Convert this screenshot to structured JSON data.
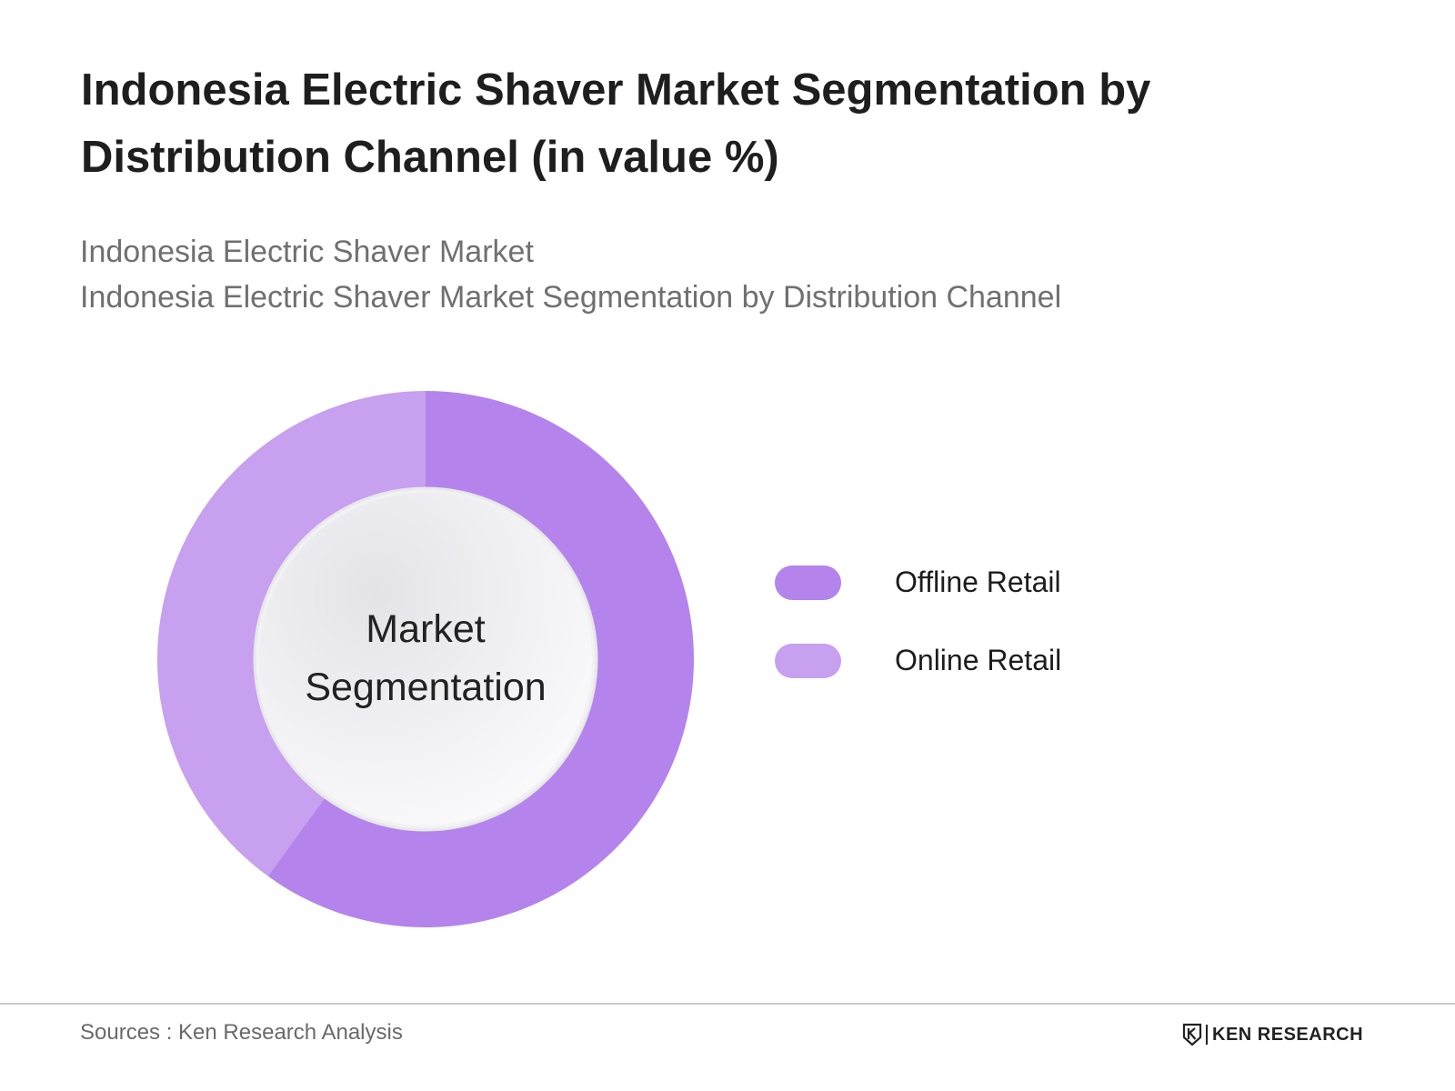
{
  "title": "Indonesia Electric Shaver Market Segmentation by Distribution Channel (in value %)",
  "subtitle_lines": [
    "Indonesia Electric Shaver Market",
    "Indonesia Electric Shaver Market Segmentation by Distribution Channel"
  ],
  "center_label": {
    "line1": "Market",
    "line2": "Segmentation"
  },
  "chart_data": {
    "type": "pie",
    "style": "donut",
    "title": "Indonesia Electric Shaver Market Segmentation by Distribution Channel (in value %)",
    "categories": [
      "Offline Retail",
      "Online Retail"
    ],
    "values": [
      60,
      40
    ],
    "colors": [
      "#b484ec",
      "#c7a0ef"
    ],
    "legend_position": "right",
    "data_labels": false,
    "grid": false
  },
  "legend": [
    {
      "label": "Offline Retail",
      "color": "#b484ec"
    },
    {
      "label": "Online Retail",
      "color": "#c7a0ef"
    }
  ],
  "footer": {
    "source": "Sources : Ken Research Analysis",
    "logo_text": "KEN RESEARCH"
  },
  "colors": {
    "offline": "#b484ec",
    "online": "#c7a0ef",
    "title": "#1e1e1e",
    "subtitle": "#707070",
    "rule": "#c9c9c9"
  }
}
